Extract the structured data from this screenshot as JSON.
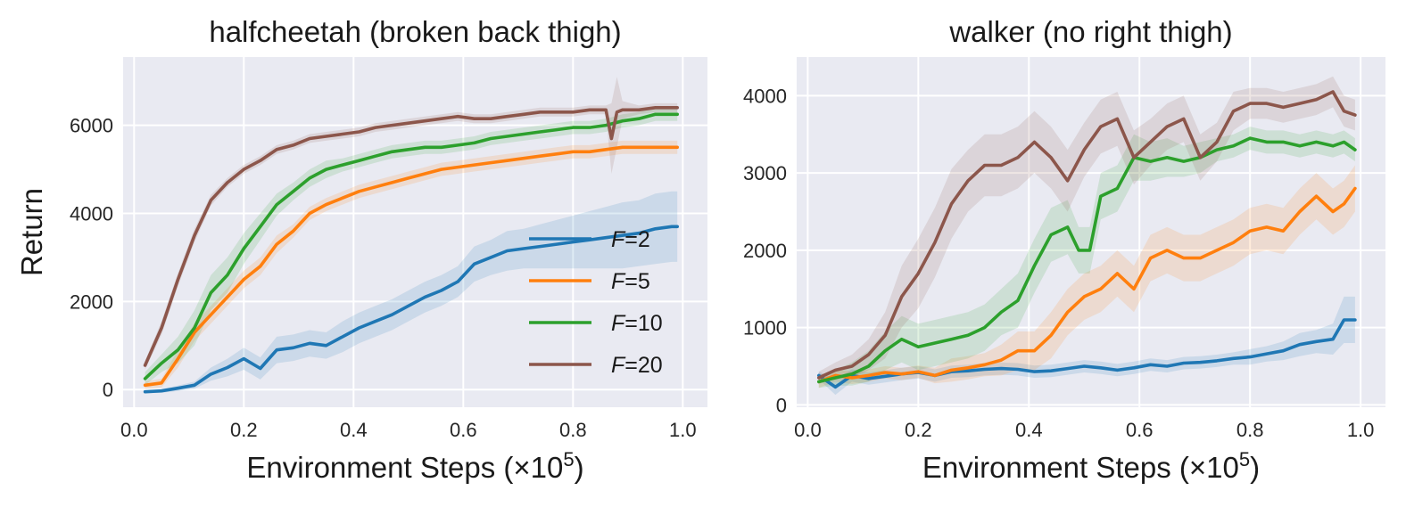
{
  "chart_data": [
    {
      "type": "line",
      "title": "halfcheetah (broken back thigh)",
      "xlabel_text": "Environment Steps (",
      "xlabel_mult": "×10",
      "xlabel_exp": "5",
      "xlabel_close": ")",
      "ylabel": "Return",
      "xlim": [
        -0.02,
        1.045
      ],
      "ylim": [
        -400,
        7550
      ],
      "xticks": [
        0.0,
        0.2,
        0.4,
        0.6,
        0.8,
        1.0
      ],
      "xtick_labels": [
        "0.0",
        "0.2",
        "0.4",
        "0.6",
        "0.8",
        "1.0"
      ],
      "yticks": [
        0,
        2000,
        4000,
        6000
      ],
      "ytick_labels": [
        "0",
        "2000",
        "4000",
        "6000"
      ],
      "grid": true,
      "legend": {
        "placement": "lower-right"
      },
      "series": [
        {
          "name": "F=2",
          "label_var": "F",
          "label_val": "=2",
          "color": "#1f77b4",
          "x": [
            0.02,
            0.05,
            0.08,
            0.11,
            0.14,
            0.17,
            0.2,
            0.23,
            0.26,
            0.29,
            0.32,
            0.35,
            0.38,
            0.41,
            0.44,
            0.47,
            0.5,
            0.53,
            0.56,
            0.59,
            0.62,
            0.65,
            0.68,
            0.71,
            0.74,
            0.77,
            0.8,
            0.83,
            0.86,
            0.89,
            0.92,
            0.95,
            0.98,
            0.99
          ],
          "y": [
            -50,
            -30,
            30,
            100,
            350,
            500,
            700,
            480,
            900,
            950,
            1050,
            1000,
            1200,
            1400,
            1550,
            1700,
            1900,
            2100,
            2250,
            2450,
            2850,
            3000,
            3150,
            3200,
            3250,
            3300,
            3350,
            3400,
            3450,
            3500,
            3550,
            3650,
            3700,
            3700
          ],
          "spread": [
            30,
            40,
            60,
            80,
            150,
            200,
            250,
            250,
            300,
            300,
            300,
            300,
            350,
            350,
            350,
            350,
            350,
            350,
            350,
            350,
            400,
            400,
            450,
            450,
            500,
            550,
            600,
            650,
            700,
            750,
            750,
            800,
            800,
            800
          ]
        },
        {
          "name": "F=5",
          "label_var": "F",
          "label_val": "=5",
          "color": "#ff7f0e",
          "x": [
            0.02,
            0.05,
            0.08,
            0.11,
            0.14,
            0.17,
            0.2,
            0.23,
            0.26,
            0.29,
            0.32,
            0.35,
            0.38,
            0.41,
            0.44,
            0.47,
            0.5,
            0.53,
            0.56,
            0.59,
            0.62,
            0.65,
            0.68,
            0.71,
            0.74,
            0.77,
            0.8,
            0.83,
            0.86,
            0.89,
            0.92,
            0.95,
            0.98,
            0.99
          ],
          "y": [
            100,
            150,
            700,
            1300,
            1700,
            2100,
            2500,
            2800,
            3300,
            3600,
            4000,
            4200,
            4350,
            4500,
            4600,
            4700,
            4800,
            4900,
            5000,
            5050,
            5100,
            5150,
            5200,
            5250,
            5300,
            5350,
            5400,
            5400,
            5450,
            5500,
            5500,
            5500,
            5500,
            5500
          ],
          "spread": [
            80,
            100,
            200,
            200,
            200,
            200,
            200,
            200,
            200,
            150,
            150,
            150,
            150,
            150,
            150,
            150,
            150,
            150,
            150,
            150,
            150,
            150,
            150,
            150,
            150,
            150,
            150,
            150,
            150,
            150,
            150,
            150,
            150,
            150
          ]
        },
        {
          "name": "F=10",
          "label_var": "F",
          "label_val": "=10",
          "color": "#2ca02c",
          "x": [
            0.02,
            0.05,
            0.08,
            0.11,
            0.14,
            0.17,
            0.2,
            0.23,
            0.26,
            0.29,
            0.32,
            0.35,
            0.38,
            0.41,
            0.44,
            0.47,
            0.5,
            0.53,
            0.56,
            0.59,
            0.62,
            0.65,
            0.68,
            0.71,
            0.74,
            0.77,
            0.8,
            0.83,
            0.86,
            0.89,
            0.92,
            0.95,
            0.98,
            0.99
          ],
          "y": [
            250,
            600,
            900,
            1400,
            2200,
            2600,
            3200,
            3700,
            4200,
            4500,
            4800,
            5000,
            5100,
            5200,
            5300,
            5400,
            5450,
            5500,
            5500,
            5550,
            5600,
            5700,
            5750,
            5800,
            5850,
            5900,
            5950,
            5950,
            6000,
            6100,
            6150,
            6250,
            6250,
            6250
          ],
          "spread": [
            150,
            200,
            300,
            400,
            400,
            400,
            350,
            300,
            250,
            200,
            200,
            200,
            150,
            150,
            150,
            150,
            150,
            150,
            150,
            150,
            150,
            150,
            150,
            150,
            150,
            150,
            150,
            150,
            150,
            150,
            150,
            150,
            150,
            150
          ]
        },
        {
          "name": "F=20",
          "label_var": "F",
          "label_val": "=20",
          "color": "#8c564b",
          "x": [
            0.02,
            0.05,
            0.08,
            0.11,
            0.14,
            0.17,
            0.2,
            0.23,
            0.26,
            0.29,
            0.32,
            0.35,
            0.38,
            0.41,
            0.44,
            0.47,
            0.5,
            0.53,
            0.56,
            0.59,
            0.62,
            0.65,
            0.68,
            0.71,
            0.74,
            0.77,
            0.8,
            0.83,
            0.86,
            0.87,
            0.88,
            0.89,
            0.92,
            0.95,
            0.98,
            0.99
          ],
          "y": [
            550,
            1400,
            2500,
            3500,
            4300,
            4700,
            5000,
            5200,
            5450,
            5550,
            5700,
            5750,
            5800,
            5850,
            5950,
            6000,
            6050,
            6100,
            6150,
            6200,
            6150,
            6150,
            6200,
            6250,
            6300,
            6300,
            6300,
            6350,
            6350,
            5700,
            6300,
            6350,
            6350,
            6400,
            6400,
            6400
          ],
          "spread": [
            100,
            150,
            150,
            150,
            120,
            100,
            100,
            100,
            100,
            100,
            100,
            100,
            100,
            100,
            100,
            100,
            100,
            100,
            100,
            100,
            100,
            100,
            100,
            100,
            100,
            100,
            100,
            100,
            100,
            800,
            800,
            200,
            100,
            100,
            100,
            100
          ]
        }
      ]
    },
    {
      "type": "line",
      "title": "walker (no right thigh)",
      "xlabel_text": "Environment Steps (",
      "xlabel_mult": "×10",
      "xlabel_exp": "5",
      "xlabel_close": ")",
      "ylabel": "",
      "xlim": [
        -0.02,
        1.045
      ],
      "ylim": [
        -30,
        4500
      ],
      "xticks": [
        0.0,
        0.2,
        0.4,
        0.6,
        0.8,
        1.0
      ],
      "xtick_labels": [
        "0.0",
        "0.2",
        "0.4",
        "0.6",
        "0.8",
        "1.0"
      ],
      "yticks": [
        0,
        1000,
        2000,
        3000,
        4000
      ],
      "ytick_labels": [
        "0",
        "1000",
        "2000",
        "3000",
        "4000"
      ],
      "grid": true,
      "series": [
        {
          "name": "F=2",
          "color": "#1f77b4",
          "x": [
            0.02,
            0.05,
            0.08,
            0.11,
            0.14,
            0.17,
            0.2,
            0.23,
            0.26,
            0.29,
            0.32,
            0.35,
            0.38,
            0.41,
            0.44,
            0.47,
            0.5,
            0.53,
            0.56,
            0.59,
            0.62,
            0.65,
            0.68,
            0.71,
            0.74,
            0.77,
            0.8,
            0.83,
            0.86,
            0.89,
            0.92,
            0.95,
            0.97,
            0.99
          ],
          "y": [
            380,
            230,
            380,
            340,
            370,
            400,
            420,
            380,
            430,
            440,
            460,
            470,
            460,
            430,
            440,
            470,
            500,
            480,
            450,
            480,
            520,
            500,
            540,
            550,
            570,
            600,
            620,
            660,
            700,
            780,
            820,
            850,
            1100,
            1100
          ],
          "spread": [
            50,
            100,
            80,
            80,
            80,
            80,
            80,
            80,
            80,
            80,
            80,
            80,
            80,
            80,
            80,
            80,
            80,
            80,
            80,
            80,
            80,
            80,
            80,
            80,
            80,
            80,
            100,
            100,
            120,
            150,
            150,
            200,
            300,
            300
          ]
        },
        {
          "name": "F=5",
          "color": "#ff7f0e",
          "x": [
            0.02,
            0.05,
            0.08,
            0.11,
            0.14,
            0.17,
            0.2,
            0.23,
            0.26,
            0.29,
            0.32,
            0.35,
            0.38,
            0.41,
            0.44,
            0.47,
            0.5,
            0.53,
            0.56,
            0.59,
            0.62,
            0.65,
            0.68,
            0.71,
            0.74,
            0.77,
            0.8,
            0.83,
            0.86,
            0.89,
            0.92,
            0.95,
            0.97,
            0.99
          ],
          "y": [
            300,
            380,
            350,
            380,
            420,
            400,
            430,
            380,
            450,
            480,
            520,
            580,
            700,
            700,
            900,
            1200,
            1400,
            1500,
            1700,
            1500,
            1900,
            2000,
            1900,
            1900,
            2000,
            2100,
            2250,
            2300,
            2250,
            2500,
            2700,
            2500,
            2600,
            2800
          ],
          "spread": [
            80,
            80,
            80,
            80,
            80,
            80,
            80,
            100,
            150,
            150,
            150,
            200,
            250,
            250,
            300,
            300,
            300,
            300,
            300,
            300,
            300,
            300,
            300,
            300,
            300,
            300,
            300,
            300,
            300,
            300,
            300,
            300,
            300,
            300
          ]
        },
        {
          "name": "F=10",
          "color": "#2ca02c",
          "x": [
            0.02,
            0.05,
            0.08,
            0.11,
            0.14,
            0.17,
            0.2,
            0.23,
            0.26,
            0.29,
            0.32,
            0.35,
            0.38,
            0.41,
            0.44,
            0.47,
            0.49,
            0.51,
            0.53,
            0.56,
            0.59,
            0.62,
            0.65,
            0.68,
            0.71,
            0.74,
            0.77,
            0.8,
            0.83,
            0.86,
            0.89,
            0.92,
            0.95,
            0.97,
            0.99
          ],
          "y": [
            300,
            350,
            400,
            500,
            700,
            850,
            750,
            800,
            850,
            900,
            1000,
            1200,
            1350,
            1800,
            2200,
            2300,
            2000,
            2000,
            2700,
            2800,
            3200,
            3150,
            3200,
            3150,
            3200,
            3300,
            3350,
            3450,
            3400,
            3400,
            3350,
            3400,
            3350,
            3400,
            3300
          ],
          "spread": [
            80,
            100,
            150,
            200,
            250,
            300,
            300,
            300,
            300,
            300,
            300,
            300,
            350,
            350,
            350,
            350,
            300,
            300,
            300,
            300,
            300,
            250,
            250,
            200,
            200,
            150,
            150,
            150,
            150,
            150,
            150,
            150,
            150,
            150,
            150
          ]
        },
        {
          "name": "F=20",
          "color": "#8c564b",
          "x": [
            0.02,
            0.05,
            0.08,
            0.11,
            0.14,
            0.17,
            0.2,
            0.23,
            0.26,
            0.29,
            0.32,
            0.35,
            0.38,
            0.41,
            0.44,
            0.47,
            0.5,
            0.53,
            0.56,
            0.59,
            0.62,
            0.65,
            0.68,
            0.71,
            0.74,
            0.77,
            0.8,
            0.83,
            0.86,
            0.89,
            0.92,
            0.95,
            0.97,
            0.99
          ],
          "y": [
            350,
            450,
            500,
            650,
            900,
            1400,
            1700,
            2100,
            2600,
            2900,
            3100,
            3100,
            3200,
            3400,
            3200,
            2900,
            3300,
            3600,
            3700,
            3200,
            3400,
            3600,
            3700,
            3200,
            3400,
            3800,
            3900,
            3900,
            3850,
            3900,
            3950,
            4050,
            3800,
            3750
          ],
          "spread": [
            80,
            100,
            150,
            200,
            300,
            400,
            450,
            450,
            450,
            400,
            400,
            400,
            400,
            400,
            400,
            400,
            350,
            350,
            350,
            350,
            300,
            300,
            300,
            300,
            250,
            250,
            200,
            200,
            200,
            200,
            200,
            200,
            200,
            200
          ]
        }
      ]
    }
  ]
}
